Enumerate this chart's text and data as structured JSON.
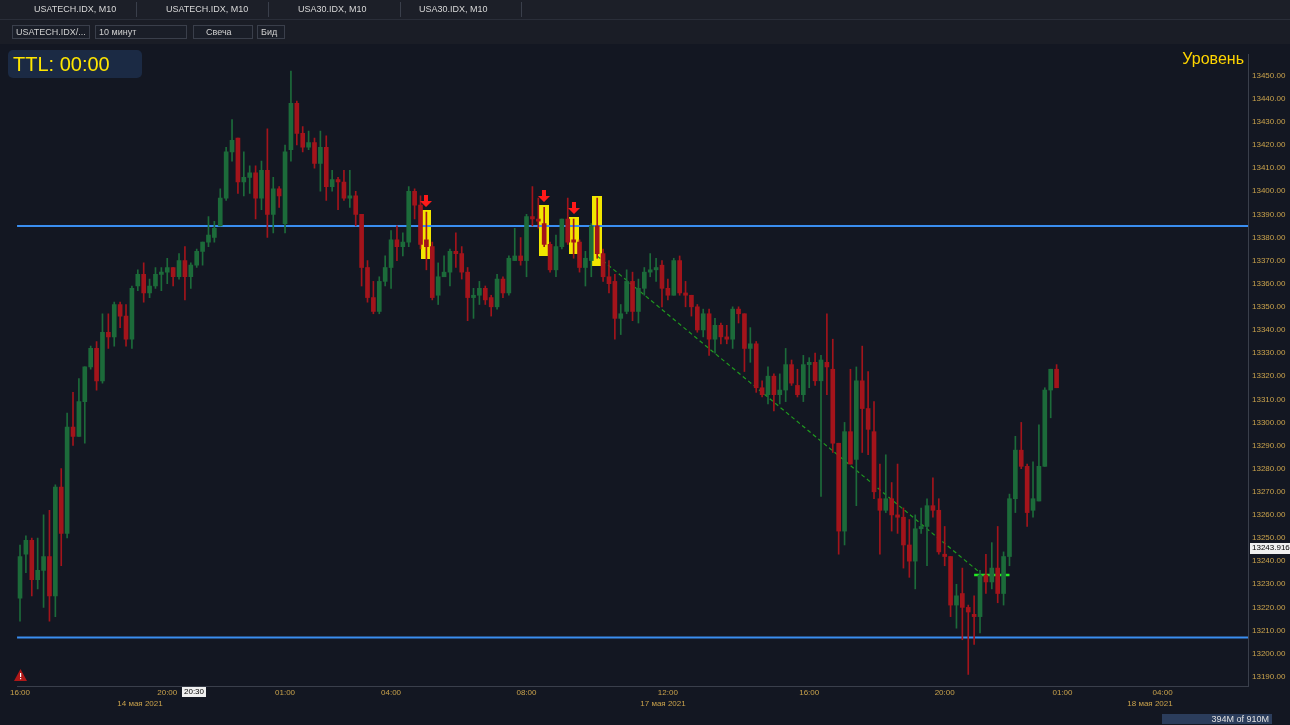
{
  "chart_data": {
    "type": "candlestick",
    "title": "Уровень",
    "categories": [
      "16:00",
      null,
      null,
      null,
      null,
      null,
      null,
      null,
      null,
      null,
      null,
      null,
      null,
      null,
      null,
      null,
      null,
      null,
      null,
      null,
      null,
      null,
      null,
      null,
      null,
      "20:00",
      null,
      null,
      null,
      null,
      null,
      null,
      null,
      null,
      null,
      null,
      null,
      null,
      null,
      null,
      null,
      null,
      null,
      null,
      null,
      "01:00",
      null,
      null,
      null,
      null,
      null,
      null,
      null,
      null,
      null,
      null,
      null,
      null,
      null,
      null,
      null,
      null,
      null,
      "04:00",
      null,
      null,
      null,
      null,
      null,
      null,
      null,
      null,
      null,
      null,
      null,
      null,
      null,
      null,
      null,
      null,
      null,
      null,
      null,
      null,
      null,
      null,
      "08:00",
      null,
      null,
      null,
      null,
      null,
      null,
      null,
      null,
      null,
      null,
      null,
      null,
      null,
      null,
      null,
      null,
      null,
      null,
      null,
      null,
      null,
      null,
      null,
      "12:00",
      null,
      null,
      null,
      null,
      null,
      null,
      null,
      null,
      null,
      null,
      null,
      null,
      null,
      null,
      null,
      null,
      null,
      null,
      null,
      null,
      null,
      null,
      null,
      "16:00",
      null,
      null,
      null,
      null,
      null,
      null,
      null,
      null,
      null,
      null,
      null,
      null,
      null,
      null,
      null,
      null,
      null,
      null,
      null,
      null,
      null,
      null,
      "20:00",
      null,
      null,
      null,
      null,
      null,
      null,
      null,
      null,
      null,
      null,
      null,
      null,
      null,
      null,
      null,
      null,
      null,
      null,
      null,
      "01:00",
      null,
      null,
      null,
      null,
      null,
      null,
      null,
      null,
      null,
      null,
      null,
      null,
      null,
      null,
      null,
      null,
      "04:00",
      null,
      null,
      null,
      null,
      null,
      null,
      null,
      null,
      null,
      null,
      null,
      null,
      null,
      null
    ],
    "ohlc": [
      [
        13224,
        13247,
        13214,
        13242
      ],
      [
        13243,
        13251,
        13235,
        13249
      ],
      [
        13249,
        13250,
        13225,
        13232
      ],
      [
        13232,
        13250,
        13228,
        13236
      ],
      [
        13236,
        13260,
        13220,
        13242
      ],
      [
        13242,
        13262,
        13214,
        13225
      ],
      [
        13225,
        13273,
        13216,
        13272
      ],
      [
        13272,
        13280,
        13238,
        13252
      ],
      [
        13252,
        13304,
        13250,
        13298
      ],
      [
        13298,
        13313,
        13290,
        13294
      ],
      [
        13294,
        13319,
        13294,
        13309
      ],
      [
        13309,
        13324,
        13291,
        13324
      ],
      [
        13324,
        13333,
        13323,
        13332
      ],
      [
        13332,
        13335,
        13314,
        13318
      ],
      [
        13318,
        13347,
        13317,
        13339
      ],
      [
        13339,
        13347,
        13332,
        13337
      ],
      [
        13337,
        13352,
        13333,
        13351
      ],
      [
        13351,
        13352,
        13341,
        13346
      ],
      [
        13346,
        13351,
        13333,
        13336
      ],
      [
        13336,
        13359,
        13332,
        13358
      ],
      [
        13359,
        13366,
        13357,
        13364
      ],
      [
        13364,
        13369,
        13352,
        13356
      ],
      [
        13356,
        13362,
        13354,
        13359
      ],
      [
        13359,
        13367,
        13358,
        13364
      ],
      [
        13364,
        13367,
        13357,
        13365
      ],
      [
        13365,
        13371,
        13360,
        13367
      ],
      [
        13367,
        13367,
        13359,
        13363
      ],
      [
        13363,
        13373,
        13362,
        13370
      ],
      [
        13370,
        13376,
        13353,
        13363
      ],
      [
        13363,
        13369,
        13358,
        13368
      ],
      [
        13368,
        13375,
        13367,
        13374
      ],
      [
        13374,
        13378,
        13368,
        13378
      ],
      [
        13378,
        13389,
        13376,
        13381
      ],
      [
        13380,
        13387,
        13378,
        13384
      ],
      [
        13385,
        13401,
        13385,
        13397
      ],
      [
        13397,
        13419,
        13396,
        13417
      ],
      [
        13417,
        13431,
        13413,
        13422
      ],
      [
        13423,
        13423,
        13399,
        13404
      ],
      [
        13404,
        13417,
        13398,
        13406
      ],
      [
        13406,
        13411,
        13399,
        13408
      ],
      [
        13408,
        13411,
        13388,
        13397
      ],
      [
        13397,
        13413,
        13392,
        13409
      ],
      [
        13409,
        13427,
        13380,
        13390
      ],
      [
        13390,
        13406,
        13382,
        13401
      ],
      [
        13401,
        13402,
        13393,
        13398
      ],
      [
        13386,
        13420,
        13382,
        13417
      ],
      [
        13418,
        13452,
        13413,
        13438
      ],
      [
        13438,
        13439,
        13420,
        13425
      ],
      [
        13425,
        13428,
        13417,
        13419
      ],
      [
        13419,
        13426,
        13418,
        13421
      ],
      [
        13421,
        13423,
        13410,
        13412
      ],
      [
        13412,
        13426,
        13400,
        13419
      ],
      [
        13419,
        13424,
        13396,
        13402
      ],
      [
        13402,
        13409,
        13400,
        13405
      ],
      [
        13405,
        13406,
        13392,
        13404
      ],
      [
        13404,
        13409,
        13396,
        13397
      ],
      [
        13397,
        13409,
        13393,
        13398
      ],
      [
        13398,
        13400,
        13385,
        13390
      ],
      [
        13390,
        13390,
        13359,
        13367
      ],
      [
        13367,
        13370,
        13352,
        13354
      ],
      [
        13354,
        13361,
        13347,
        13348
      ],
      [
        13348,
        13363,
        13347,
        13361
      ],
      [
        13361,
        13372,
        13359,
        13367
      ],
      [
        13367,
        13383,
        13358,
        13379
      ],
      [
        13379,
        13385,
        13370,
        13376
      ],
      [
        13376,
        13382,
        13372,
        13378
      ],
      [
        13378,
        13402,
        13376,
        13400
      ],
      [
        13400,
        13401,
        13388,
        13394
      ],
      [
        13394,
        13398,
        13375,
        13377
      ],
      [
        13379,
        13391,
        13366,
        13376
      ],
      [
        13376,
        13378,
        13353,
        13354
      ],
      [
        13355,
        13369,
        13351,
        13363
      ],
      [
        13363,
        13372,
        13363,
        13365
      ],
      [
        13365,
        13375,
        13359,
        13374
      ],
      [
        13374,
        13382,
        13367,
        13373
      ],
      [
        13373,
        13376,
        13362,
        13365
      ],
      [
        13365,
        13367,
        13344,
        13354
      ],
      [
        13354,
        13358,
        13345,
        13355
      ],
      [
        13355,
        13361,
        13351,
        13358
      ],
      [
        13358,
        13359,
        13351,
        13353
      ],
      [
        13354,
        13355,
        13346,
        13350
      ],
      [
        13350,
        13364,
        13349,
        13362
      ],
      [
        13362,
        13363,
        13354,
        13356
      ],
      [
        13356,
        13372,
        13355,
        13371
      ],
      [
        13370,
        13384,
        13370,
        13372
      ],
      [
        13372,
        13380,
        13368,
        13370
      ],
      [
        13370,
        13390,
        13363,
        13389
      ],
      [
        13389,
        13402,
        13385,
        13388
      ],
      [
        13388,
        13397,
        13384,
        13387
      ],
      [
        13386,
        13393,
        13376,
        13377
      ],
      [
        13377,
        13378,
        13365,
        13366
      ],
      [
        13366,
        13381,
        13363,
        13376
      ],
      [
        13376,
        13388,
        13375,
        13388
      ],
      [
        13388,
        13397,
        13377,
        13378
      ],
      [
        13379,
        13388,
        13371,
        13378
      ],
      [
        13378,
        13379,
        13365,
        13367
      ],
      [
        13367,
        13374,
        13359,
        13371
      ],
      [
        13370,
        13386,
        13363,
        13385
      ],
      [
        13385,
        13397,
        13371,
        13373
      ],
      [
        13373,
        13375,
        13361,
        13363
      ],
      [
        13363,
        13370,
        13356,
        13360
      ],
      [
        13361,
        13364,
        13336,
        13345
      ],
      [
        13345,
        13351,
        13338,
        13347
      ],
      [
        13348,
        13366,
        13347,
        13361
      ],
      [
        13361,
        13365,
        13344,
        13348
      ],
      [
        13348,
        13362,
        13343,
        13358
      ],
      [
        13358,
        13367,
        13355,
        13365
      ],
      [
        13365,
        13373,
        13363,
        13366
      ],
      [
        13366,
        13371,
        13361,
        13367
      ],
      [
        13368,
        13370,
        13350,
        13358
      ],
      [
        13358,
        13362,
        13353,
        13355
      ],
      [
        13355,
        13371,
        13355,
        13370
      ],
      [
        13370,
        13372,
        13355,
        13356
      ],
      [
        13356,
        13361,
        13350,
        13355
      ],
      [
        13355,
        13355,
        13346,
        13350
      ],
      [
        13350,
        13351,
        13339,
        13340
      ],
      [
        13340,
        13349,
        13337,
        13347
      ],
      [
        13347,
        13349,
        13329,
        13336
      ],
      [
        13336,
        13345,
        13330,
        13342
      ],
      [
        13342,
        13343,
        13334,
        13337
      ],
      [
        13337,
        13342,
        13334,
        13336
      ],
      [
        13336,
        13350,
        13332,
        13349
      ],
      [
        13349,
        13350,
        13343,
        13347
      ],
      [
        13347,
        13347,
        13322,
        13332
      ],
      [
        13332,
        13341,
        13326,
        13334
      ],
      [
        13334,
        13335,
        13313,
        13315
      ],
      [
        13315,
        13318,
        13311,
        13312
      ],
      [
        13312,
        13324,
        13308,
        13320
      ],
      [
        13320,
        13321,
        13305,
        13312
      ],
      [
        13312,
        13321,
        13308,
        13314
      ],
      [
        13314,
        13332,
        13309,
        13325
      ],
      [
        13325,
        13327,
        13316,
        13317
      ],
      [
        13316,
        13323,
        13311,
        13312
      ],
      [
        13312,
        13329,
        13309,
        13325
      ],
      [
        13325,
        13328,
        13315,
        13326
      ],
      [
        13326,
        13330,
        13316,
        13318
      ],
      [
        13318,
        13329,
        13268,
        13327
      ],
      [
        13326,
        13347,
        13312,
        13324
      ],
      [
        13323,
        13336,
        13287,
        13291
      ],
      [
        13291,
        13291,
        13243,
        13253
      ],
      [
        13253,
        13300,
        13247,
        13296
      ],
      [
        13296,
        13323,
        13282,
        13282
      ],
      [
        13284,
        13324,
        13264,
        13318
      ],
      [
        13318,
        13333,
        13287,
        13306
      ],
      [
        13306,
        13322,
        13286,
        13297
      ],
      [
        13296,
        13309,
        13267,
        13270
      ],
      [
        13267,
        13282,
        13243,
        13262
      ],
      [
        13262,
        13286,
        13261,
        13267
      ],
      [
        13267,
        13274,
        13253,
        13260
      ],
      [
        13260,
        13282,
        13252,
        13259
      ],
      [
        13259,
        13263,
        13237,
        13247
      ],
      [
        13247,
        13258,
        13233,
        13240
      ],
      [
        13240,
        13260,
        13228,
        13254
      ],
      [
        13254,
        13263,
        13252,
        13255
      ],
      [
        13255,
        13267,
        13238,
        13264
      ],
      [
        13264,
        13276,
        13259,
        13262
      ],
      [
        13262,
        13267,
        13243,
        13244
      ],
      [
        13243,
        13255,
        13238,
        13242
      ],
      [
        13242,
        13242,
        13216,
        13221
      ],
      [
        13221,
        13230,
        13211,
        13225
      ],
      [
        13226,
        13237,
        13206,
        13220
      ],
      [
        13220,
        13221,
        13191,
        13218
      ],
      [
        13217,
        13225,
        13204,
        13216
      ],
      [
        13216,
        13236,
        13209,
        13234
      ],
      [
        13234,
        13243,
        13226,
        13231
      ],
      [
        13231,
        13248,
        13228,
        13237
      ],
      [
        13237,
        13255,
        13222,
        13226
      ],
      [
        13226,
        13244,
        13221,
        13242
      ],
      [
        13242,
        13269,
        13238,
        13267
      ],
      [
        13267,
        13294,
        13261,
        13288
      ],
      [
        13288,
        13300,
        13280,
        13281
      ],
      [
        13281,
        13282,
        13255,
        13261
      ],
      [
        13262,
        13283,
        13259,
        13267
      ],
      [
        13266,
        13299,
        13266,
        13281
      ],
      [
        13281,
        13315,
        13281,
        13314
      ],
      [
        13314,
        13323,
        13302,
        13323
      ],
      [
        13323,
        13325,
        13315,
        13315
      ],
      null,
      null,
      null,
      null,
      null,
      null,
      null,
      null,
      null,
      null,
      null,
      null,
      null,
      null,
      null,
      null,
      null,
      null,
      null,
      null,
      null,
      null,
      null,
      null,
      null,
      null,
      null,
      null,
      null,
      null,
      null,
      null
    ],
    "colors": [
      "#1c6b3a",
      "#1c6b3a",
      "#a3141b",
      "#1c6b3a",
      "#1c6b3a",
      "#a3141b",
      "#1c6b3a",
      "#a3141b",
      "#1c6b3a",
      "#a3141b",
      "#1c6b3a",
      "#1c6b3a",
      "#1c6b3a",
      "#a3141b",
      "#1c6b3a",
      "#a3141b",
      "#1c6b3a",
      "#a3141b",
      "#a3141b",
      "#1c6b3a",
      "#1c6b3a",
      "#a3141b",
      "#1c6b3a",
      "#1c6b3a",
      "#1c6b3a",
      "#1c6b3a",
      "#a3141b",
      "#1c6b3a",
      "#a3141b",
      "#1c6b3a",
      "#1c6b3a",
      "#1c6b3a",
      "#1c6b3a",
      "#1c6b3a",
      "#1c6b3a",
      "#1c6b3a",
      "#1c6b3a",
      "#a3141b",
      "#1c6b3a",
      "#1c6b3a",
      "#a3141b",
      "#1c6b3a",
      "#a3141b",
      "#1c6b3a",
      "#a3141b",
      "#1c6b3a",
      "#1c6b3a",
      "#a3141b",
      "#a3141b",
      "#1c6b3a",
      "#a3141b",
      "#1c6b3a",
      "#a3141b",
      "#1c6b3a",
      "#a3141b",
      "#a3141b",
      "#1c6b3a",
      "#a3141b",
      "#a3141b",
      "#a3141b",
      "#a3141b",
      "#1c6b3a",
      "#1c6b3a",
      "#1c6b3a",
      "#a3141b",
      "#1c6b3a",
      "#1c6b3a",
      "#a3141b",
      "#a3141b",
      "#a3141b",
      "#a3141b",
      "#1c6b3a",
      "#1c6b3a",
      "#1c6b3a",
      "#a3141b",
      "#a3141b",
      "#a3141b",
      "#1c6b3a",
      "#1c6b3a",
      "#a3141b",
      "#a3141b",
      "#1c6b3a",
      "#a3141b",
      "#1c6b3a",
      "#1c6b3a",
      "#a3141b",
      "#1c6b3a",
      "#a3141b",
      "#a3141b",
      "#a3141b",
      "#a3141b",
      "#1c6b3a",
      "#1c6b3a",
      "#a3141b",
      "#a3141b",
      "#a3141b",
      "#1c6b3a",
      "#1c6b3a",
      "#a3141b",
      "#a3141b",
      "#a3141b",
      "#a3141b",
      "#1c6b3a",
      "#1c6b3a",
      "#a3141b",
      "#1c6b3a",
      "#1c6b3a",
      "#1c6b3a",
      "#1c6b3a",
      "#a3141b",
      "#a3141b",
      "#1c6b3a",
      "#a3141b",
      "#a3141b",
      "#a3141b",
      "#a3141b",
      "#1c6b3a",
      "#a3141b",
      "#1c6b3a",
      "#a3141b",
      "#a3141b",
      "#1c6b3a",
      "#a3141b",
      "#a3141b",
      "#1c6b3a",
      "#a3141b",
      "#a3141b",
      "#1c6b3a",
      "#a3141b",
      "#1c6b3a",
      "#1c6b3a",
      "#a3141b",
      "#a3141b",
      "#1c6b3a",
      "#1c6b3a",
      "#a3141b",
      "#1c6b3a",
      "#a3141b",
      "#a3141b",
      "#a3141b",
      "#1c6b3a",
      "#a3141b",
      "#1c6b3a",
      "#a3141b",
      "#a3141b",
      "#a3141b",
      "#a3141b",
      "#1c6b3a",
      "#a3141b",
      "#a3141b",
      "#a3141b",
      "#a3141b",
      "#1c6b3a",
      "#1c6b3a",
      "#1c6b3a",
      "#a3141b",
      "#a3141b",
      "#a3141b",
      "#a3141b",
      "#1c6b3a",
      "#a3141b",
      "#a3141b",
      "#a3141b",
      "#1c6b3a",
      "#a3141b",
      "#1c6b3a",
      "#a3141b",
      "#1c6b3a",
      "#1c6b3a",
      "#1c6b3a",
      "#a3141b",
      "#a3141b",
      "#1c6b3a",
      "#1c6b3a",
      "#1c6b3a",
      "#1c6b3a",
      "#a3141b",
      null,
      null,
      null,
      null,
      null,
      null,
      null,
      null,
      null,
      null,
      null,
      null,
      null,
      null,
      null,
      null,
      null,
      null,
      null,
      null,
      null,
      null,
      null,
      null,
      null,
      null,
      null,
      null,
      null,
      null,
      null,
      null
    ],
    "series": [
      {
        "type": "line",
        "color": "#1f9a1f",
        "line_style": "dashed",
        "values": [
          null,
          null,
          null,
          null,
          null,
          null,
          null,
          null,
          null,
          null,
          null,
          null,
          null,
          null,
          null,
          null,
          null,
          null,
          null,
          null,
          null,
          null,
          null,
          null,
          null,
          null,
          null,
          null,
          null,
          null,
          null,
          null,
          null,
          null,
          null,
          null,
          null,
          null,
          null,
          null,
          null,
          null,
          null,
          null,
          null,
          null,
          null,
          null,
          null,
          null,
          null,
          null,
          null,
          null,
          null,
          null,
          null,
          null,
          null,
          null,
          null,
          null,
          null,
          null,
          null,
          null,
          null,
          null,
          null,
          null,
          null,
          null,
          null,
          null,
          null,
          null,
          null,
          null,
          null,
          null,
          null,
          null,
          null,
          null,
          null,
          null,
          null,
          null,
          null,
          null,
          null,
          null,
          null,
          null,
          null,
          null,
          null,
          null,
          13372,
          null,
          null,
          null,
          null,
          null,
          null,
          null,
          null,
          null,
          null,
          null,
          null,
          null,
          null,
          null,
          null,
          null,
          null,
          null,
          null,
          null,
          null,
          null,
          null,
          null,
          null,
          null,
          null,
          null,
          null,
          null,
          null,
          null,
          null,
          null,
          null,
          null,
          null,
          null,
          null,
          null,
          null,
          null,
          null,
          null,
          null,
          null,
          null,
          null,
          null,
          null,
          null,
          null,
          null,
          null,
          null,
          null,
          null,
          null,
          null,
          null,
          null,
          null,
          null,
          13235,
          null,
          null,
          null,
          null,
          null,
          null,
          null,
          null,
          null,
          null,
          null,
          null,
          null,
          null,
          null,
          null,
          null,
          null,
          null,
          null,
          null,
          null,
          null,
          null,
          null,
          null,
          null,
          null,
          null,
          null,
          null,
          null,
          null,
          null,
          null,
          null,
          null,
          null,
          null,
          null,
          null,
          null,
          null,
          null,
          null
        ]
      },
      {
        "type": "line",
        "color": "#22ee22",
        "line_style": "solid",
        "values": [
          null,
          null,
          null,
          null,
          null,
          null,
          null,
          null,
          null,
          null,
          null,
          null,
          null,
          null,
          null,
          null,
          null,
          null,
          null,
          null,
          null,
          null,
          null,
          null,
          null,
          null,
          null,
          null,
          null,
          null,
          null,
          null,
          null,
          null,
          null,
          null,
          null,
          null,
          null,
          null,
          null,
          null,
          null,
          null,
          null,
          null,
          null,
          null,
          null,
          null,
          null,
          null,
          null,
          null,
          null,
          null,
          null,
          null,
          null,
          null,
          null,
          null,
          null,
          null,
          null,
          null,
          null,
          null,
          null,
          null,
          null,
          null,
          null,
          null,
          null,
          null,
          null,
          null,
          null,
          null,
          null,
          null,
          null,
          null,
          null,
          null,
          null,
          null,
          null,
          null,
          null,
          null,
          null,
          null,
          null,
          null,
          null,
          null,
          null,
          null,
          null,
          null,
          null,
          null,
          null,
          null,
          null,
          null,
          null,
          null,
          null,
          null,
          null,
          null,
          null,
          null,
          null,
          null,
          null,
          null,
          null,
          null,
          null,
          null,
          null,
          null,
          null,
          null,
          null,
          null,
          null,
          null,
          null,
          null,
          null,
          null,
          null,
          null,
          null,
          null,
          null,
          null,
          null,
          null,
          null,
          null,
          null,
          null,
          null,
          null,
          null,
          null,
          null,
          null,
          null,
          null,
          null,
          null,
          null,
          null,
          null,
          null,
          13234,
          13234,
          13234,
          13234,
          13234,
          13234,
          13234,
          null,
          null,
          null,
          null,
          null,
          null,
          null,
          null,
          null,
          null,
          null,
          null,
          null,
          null,
          null,
          null,
          null,
          null,
          null,
          null,
          null,
          null,
          null,
          null,
          null,
          null,
          null,
          null,
          null,
          null,
          null,
          null,
          null,
          null,
          null,
          null,
          null,
          null,
          null,
          null
        ]
      }
    ],
    "ylim": [
      13186,
      13459
    ],
    "yticks": [
      {
        "value": 13190,
        "label": "13190.00"
      },
      {
        "value": 13200,
        "label": "13200.00"
      },
      {
        "value": 13210,
        "label": "13210.00"
      },
      {
        "value": 13220,
        "label": "13220.00"
      },
      {
        "value": 13230,
        "label": "13230.00"
      },
      {
        "value": 13240,
        "label": "13240.00"
      },
      {
        "value": 13250,
        "label": "13250.00"
      },
      {
        "value": 13260,
        "label": "13260.00"
      },
      {
        "value": 13270,
        "label": "13270.00"
      },
      {
        "value": 13280,
        "label": "13280.00"
      },
      {
        "value": 13290,
        "label": "13290.00"
      },
      {
        "value": 13300,
        "label": "13300.00"
      },
      {
        "value": 13310,
        "label": "13310.00"
      },
      {
        "value": 13320,
        "label": "13320.00"
      },
      {
        "value": 13330,
        "label": "13330.00"
      },
      {
        "value": 13340,
        "label": "13340.00"
      },
      {
        "value": 13350,
        "label": "13350.00"
      },
      {
        "value": 13360,
        "label": "13360.00"
      },
      {
        "value": 13370,
        "label": "13370.00"
      },
      {
        "value": 13380,
        "label": "13380.00"
      },
      {
        "value": 13390,
        "label": "13390.00"
      },
      {
        "value": 13400,
        "label": "13400.00"
      },
      {
        "value": 13410,
        "label": "13410.00"
      },
      {
        "value": 13420,
        "label": "13420.00"
      },
      {
        "value": 13430,
        "label": "13430.00"
      },
      {
        "value": 13440,
        "label": "13440.00"
      },
      {
        "value": 13450,
        "label": "13450.00"
      }
    ],
    "ref_lines": [
      {
        "axis": "y",
        "value": 13385,
        "color": "#3a8ef0"
      },
      {
        "axis": "y",
        "value": 13207,
        "color": "#3a8ef0"
      }
    ],
    "annotations": [
      "TTL: 00:00",
      "14 мая 2021",
      "17 мая 2021",
      "18 мая 2021",
      "USATECH.IDX, M10",
      "USATECH.IDX, M10",
      "USA30.IDX, M10",
      "USA30.IDX, M10",
      "USATECH.IDX/...",
      "10 минут",
      "Свеча",
      "Бид",
      "394M of 910M",
      "13243.916",
      "20:30"
    ]
  }
}
